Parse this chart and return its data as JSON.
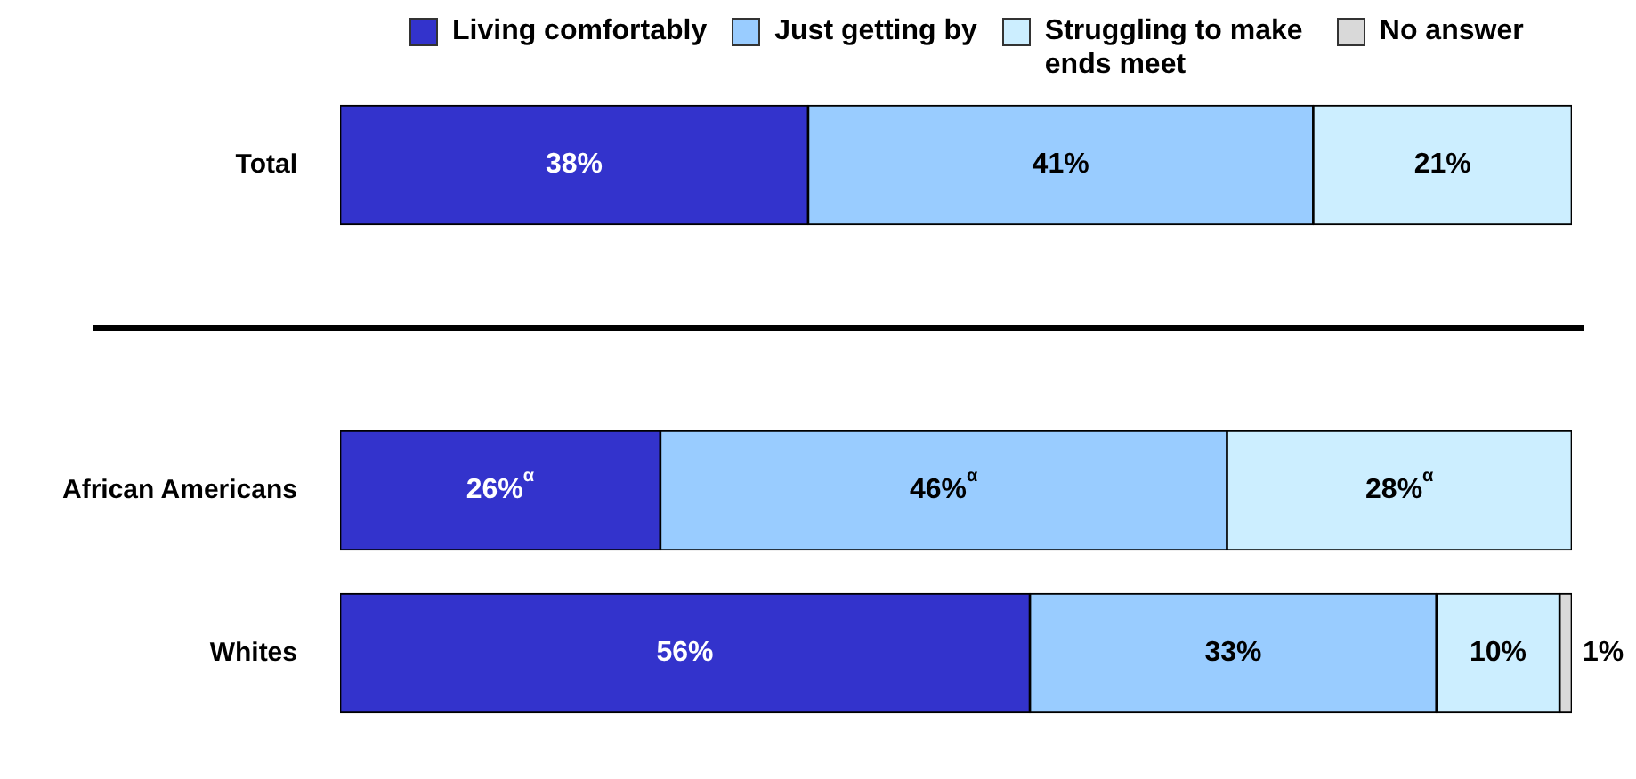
{
  "chart_data": {
    "type": "bar",
    "orientation": "horizontal",
    "stacked": true,
    "legend": "top",
    "categories": [
      "Total",
      null,
      "African Americans",
      "Whites"
    ],
    "series": [
      {
        "name": "Living comfortably",
        "color": "#3333cc",
        "values": [
          38,
          null,
          26,
          56
        ],
        "value_labels": [
          "38%",
          null,
          "26%$^{α}$",
          "56%"
        ]
      },
      {
        "name": "Just getting by",
        "color": "#99ccff",
        "values": [
          41,
          null,
          46,
          33
        ],
        "value_labels": [
          "41%",
          null,
          "46%$^{α}$",
          "33%"
        ]
      },
      {
        "name": "Struggling to make ends meet",
        "color": "#cceeff",
        "values": [
          21,
          null,
          28,
          10
        ],
        "value_labels": [
          "21%",
          null,
          "28%$^{α}$",
          "10%"
        ]
      },
      {
        "name": "No answer",
        "color": "#d9d9d9",
        "values": [
          null,
          null,
          null,
          1
        ],
        "value_labels": [
          null,
          null,
          null,
          "1%"
        ]
      }
    ]
  }
}
